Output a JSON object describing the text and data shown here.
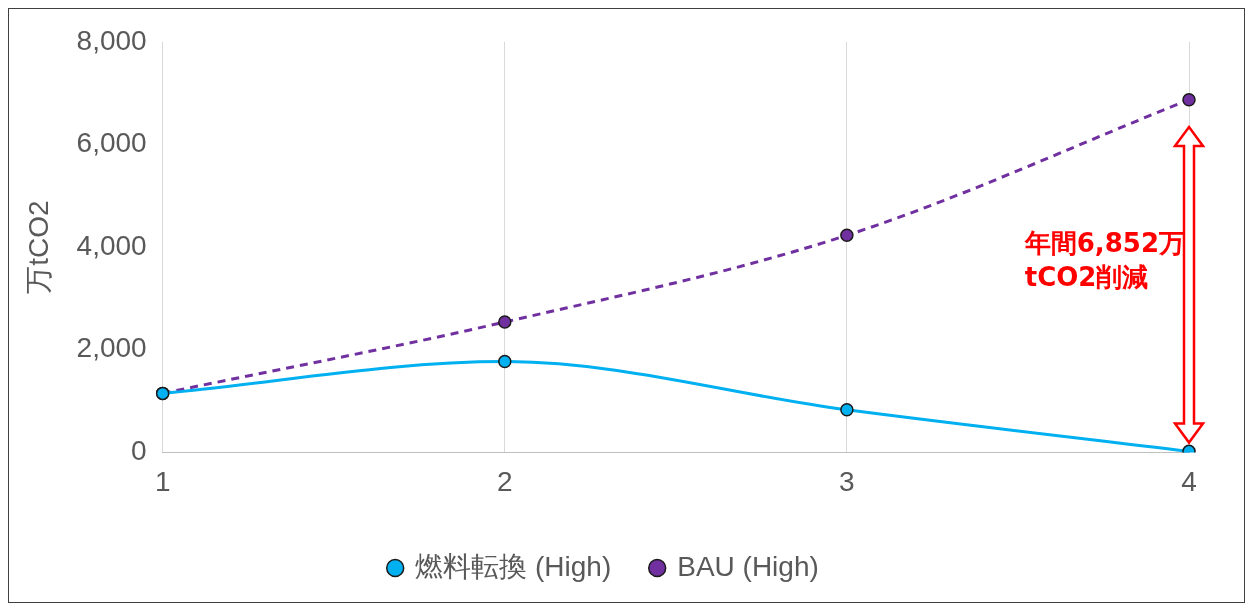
{
  "chart_data": {
    "type": "line",
    "ylabel": "万tCO2",
    "categories": [
      "1",
      "2",
      "3",
      "4"
    ],
    "series": [
      {
        "name": "BAU (High)",
        "color": "#7030a0",
        "values": [
          1150,
          2540,
          4230,
          6870
        ],
        "line_style": "dashed"
      },
      {
        "name": "燃料転換 (High)",
        "color": "#00b0f0",
        "values": [
          1150,
          1770,
          830,
          20
        ],
        "line_style": "solid"
      }
    ],
    "ylim": [
      0,
      8000
    ],
    "yticks": [
      0,
      {
        "value": 2000,
        "label": "2,000"
      },
      {
        "value": 4000,
        "label": "4,000"
      },
      {
        "value": 6000,
        "label": "6,000"
      },
      {
        "value": 8000,
        "label": "8,000"
      }
    ],
    "grid": "x",
    "legend": "bottom",
    "marker": "circle",
    "annotations": [
      "年間6,852万\ntCO2削減"
    ]
  }
}
